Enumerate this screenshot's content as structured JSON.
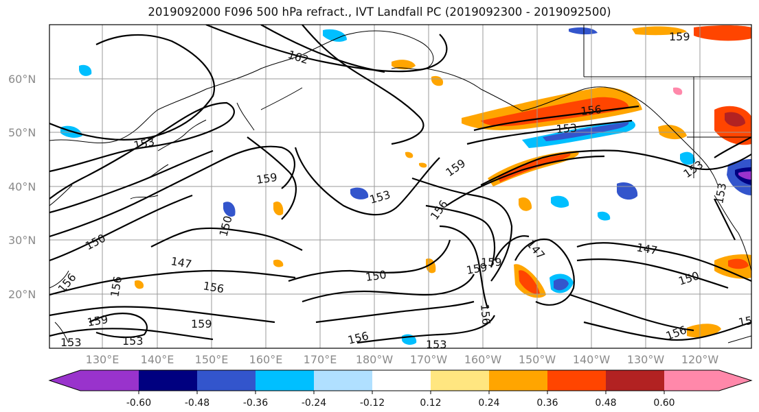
{
  "title": "2019092000 F096 500 hPa refract., IVT Landfall PC (2019092300 - 2019092500)",
  "map": {
    "lat_labels": [
      "60°N",
      "50°N",
      "40°N",
      "30°N",
      "20°N"
    ],
    "lon_labels": [
      "130°E",
      "140°E",
      "150°E",
      "160°E",
      "170°E",
      "180°W",
      "170°W",
      "160°W",
      "150°W",
      "140°W",
      "130°W",
      "120°W"
    ],
    "contour_labels": [
      "162",
      "159",
      "159",
      "156",
      "153",
      "153",
      "153",
      "153",
      "159",
      "159",
      "153",
      "156",
      "150",
      "150",
      "156",
      "147",
      "156",
      "159",
      "153",
      "147",
      "159",
      "156",
      "150",
      "156",
      "159",
      "153",
      "156",
      "147",
      "150",
      "156",
      "153",
      "15"
    ]
  },
  "colorbar": {
    "tick_labels": [
      "-0.60",
      "-0.48",
      "-0.36",
      "-0.24",
      "-0.12",
      "0.12",
      "0.24",
      "0.36",
      "0.48",
      "0.60"
    ],
    "colors": [
      "#9933cc",
      "#000080",
      "#3355cc",
      "#00bfff",
      "#b0e0ff",
      "#ffffff",
      "#ffe680",
      "#ffa500",
      "#ff4500",
      "#b22222",
      "#ff88aa"
    ]
  }
}
